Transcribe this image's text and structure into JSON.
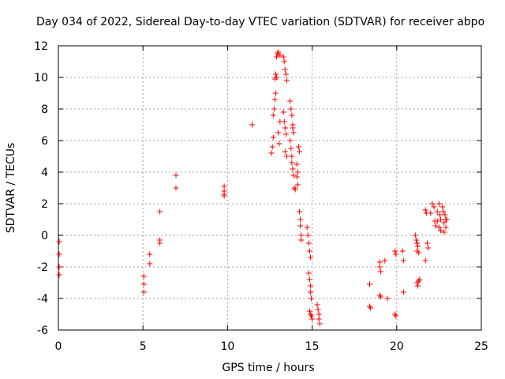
{
  "chart_data": {
    "type": "scatter",
    "title": "Day 034 of 2022, Sidereal Day-to-day VTEC variation (SDTVAR) for receiver abpo",
    "xlabel": "GPS time / hours",
    "ylabel": "SDTVAR / TECUs",
    "xlim": [
      0,
      25
    ],
    "ylim": [
      -6,
      12
    ],
    "xticks": [
      0,
      5,
      10,
      15,
      20,
      25
    ],
    "yticks": [
      -6,
      -4,
      -2,
      0,
      2,
      4,
      6,
      8,
      10,
      12
    ],
    "grid": true,
    "marker": "plus",
    "color": "#ff0000",
    "series": [
      {
        "name": "SDTVAR",
        "points": [
          [
            0.05,
            -0.4
          ],
          [
            0.05,
            -1.2
          ],
          [
            0.05,
            -2.0
          ],
          [
            0.05,
            -2.5
          ],
          [
            5.05,
            -2.6
          ],
          [
            5.05,
            -3.1
          ],
          [
            5.05,
            -3.6
          ],
          [
            5.4,
            -1.2
          ],
          [
            5.4,
            -1.8
          ],
          [
            6.0,
            1.5
          ],
          [
            6.0,
            -0.3
          ],
          [
            6.0,
            -0.5
          ],
          [
            6.95,
            3.8
          ],
          [
            6.95,
            3.0
          ],
          [
            9.8,
            3.1
          ],
          [
            9.8,
            2.8
          ],
          [
            9.8,
            2.5
          ],
          [
            9.8,
            2.6
          ],
          [
            11.45,
            7.0
          ],
          [
            12.6,
            5.2
          ],
          [
            12.65,
            5.6
          ],
          [
            12.7,
            6.2
          ],
          [
            12.7,
            7.6
          ],
          [
            12.75,
            8.0
          ],
          [
            12.8,
            8.6
          ],
          [
            12.85,
            9.0
          ],
          [
            12.8,
            9.9
          ],
          [
            12.85,
            10.2
          ],
          [
            12.9,
            11.3
          ],
          [
            12.95,
            11.5
          ],
          [
            13.0,
            11.6
          ],
          [
            13.1,
            11.4
          ],
          [
            13.0,
            6.5
          ],
          [
            13.05,
            5.8
          ],
          [
            13.1,
            7.2
          ],
          [
            12.9,
            10.0
          ],
          [
            13.3,
            11.3
          ],
          [
            13.35,
            11.0
          ],
          [
            13.4,
            10.5
          ],
          [
            13.45,
            10.2
          ],
          [
            13.5,
            9.8
          ],
          [
            13.3,
            7.8
          ],
          [
            13.35,
            7.2
          ],
          [
            13.4,
            6.8
          ],
          [
            13.45,
            6.4
          ],
          [
            13.4,
            5.3
          ],
          [
            13.5,
            5.0
          ],
          [
            13.7,
            8.5
          ],
          [
            13.75,
            8.0
          ],
          [
            13.8,
            7.6
          ],
          [
            13.85,
            7.0
          ],
          [
            13.85,
            6.8
          ],
          [
            13.9,
            6.5
          ],
          [
            13.7,
            6.0
          ],
          [
            13.75,
            5.5
          ],
          [
            13.8,
            5.0
          ],
          [
            13.8,
            4.6
          ],
          [
            13.85,
            4.2
          ],
          [
            13.9,
            3.8
          ],
          [
            13.95,
            3.0
          ],
          [
            14.0,
            2.9
          ],
          [
            14.1,
            3.7
          ],
          [
            14.15,
            4.0
          ],
          [
            14.1,
            4.5
          ],
          [
            14.15,
            3.2
          ],
          [
            14.2,
            5.6
          ],
          [
            14.25,
            5.3
          ],
          [
            14.25,
            1.5
          ],
          [
            14.3,
            1.0
          ],
          [
            14.3,
            0.6
          ],
          [
            14.35,
            0.0
          ],
          [
            14.35,
            -0.3
          ],
          [
            14.7,
            0.5
          ],
          [
            14.75,
            0.0
          ],
          [
            14.8,
            -0.5
          ],
          [
            14.85,
            -1.0
          ],
          [
            14.9,
            -1.4
          ],
          [
            14.8,
            -2.4
          ],
          [
            14.85,
            -2.8
          ],
          [
            14.9,
            -3.2
          ],
          [
            14.9,
            -3.6
          ],
          [
            14.95,
            -4.0
          ],
          [
            14.85,
            -4.8
          ],
          [
            14.9,
            -5.0
          ],
          [
            14.95,
            -5.1
          ],
          [
            15.0,
            -5.3
          ],
          [
            15.3,
            -4.4
          ],
          [
            15.35,
            -4.7
          ],
          [
            15.4,
            -5.0
          ],
          [
            15.4,
            -5.3
          ],
          [
            15.45,
            -5.6
          ],
          [
            18.4,
            -3.1
          ],
          [
            18.4,
            -4.5
          ],
          [
            18.45,
            -4.6
          ],
          [
            19.0,
            -1.7
          ],
          [
            19.0,
            -2.0
          ],
          [
            19.05,
            -2.3
          ],
          [
            19.0,
            -3.8
          ],
          [
            19.05,
            -3.9
          ],
          [
            19.3,
            -1.6
          ],
          [
            19.45,
            -4.0
          ],
          [
            19.9,
            -1.0
          ],
          [
            19.95,
            -1.2
          ],
          [
            19.9,
            -5.0
          ],
          [
            19.95,
            -5.1
          ],
          [
            20.35,
            -1.0
          ],
          [
            20.4,
            -1.6
          ],
          [
            20.4,
            -3.6
          ],
          [
            21.1,
            0.0
          ],
          [
            21.15,
            -0.3
          ],
          [
            21.2,
            -0.5
          ],
          [
            21.25,
            -0.7
          ],
          [
            21.2,
            -1.0
          ],
          [
            21.3,
            -1.1
          ],
          [
            21.2,
            -3.0
          ],
          [
            21.25,
            -3.2
          ],
          [
            21.3,
            -2.9
          ],
          [
            21.35,
            -2.8
          ],
          [
            21.7,
            1.6
          ],
          [
            21.75,
            1.4
          ],
          [
            21.8,
            -0.5
          ],
          [
            21.85,
            -0.8
          ],
          [
            21.7,
            -1.6
          ],
          [
            22.0,
            1.4
          ],
          [
            22.1,
            2.0
          ],
          [
            22.2,
            1.8
          ],
          [
            22.25,
            0.9
          ],
          [
            22.3,
            0.6
          ],
          [
            22.4,
            1.5
          ],
          [
            22.5,
            2.0
          ],
          [
            22.55,
            1.3
          ],
          [
            22.6,
            0.3
          ],
          [
            22.6,
            1.0
          ],
          [
            22.7,
            1.8
          ],
          [
            22.75,
            1.5
          ],
          [
            22.8,
            0.2
          ],
          [
            22.8,
            0.8
          ],
          [
            22.85,
            1.3
          ],
          [
            22.9,
            1.0
          ],
          [
            22.9,
            0.5
          ],
          [
            22.95,
            1.0
          ],
          [
            22.4,
            0.9
          ],
          [
            22.5,
            0.5
          ]
        ]
      }
    ]
  }
}
